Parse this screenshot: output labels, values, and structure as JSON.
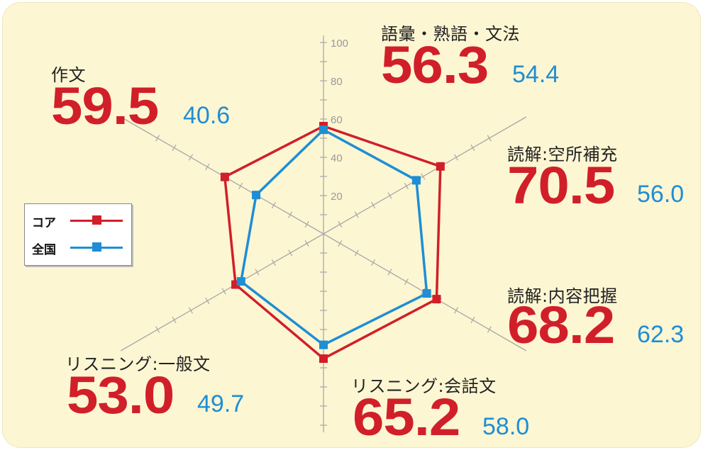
{
  "colors": {
    "core": "#d11f2a",
    "national": "#1f8ed3",
    "axis": "#a8a8a8",
    "background": "#fdf6d3"
  },
  "legend": {
    "items": [
      {
        "label": "コア",
        "color": "#d11f2a"
      },
      {
        "label": "全国",
        "color": "#1f8ed3"
      }
    ]
  },
  "chart_data": {
    "type": "radar",
    "range": [
      0,
      100
    ],
    "ticks": [
      "20",
      "40",
      "60",
      "80",
      "100"
    ],
    "grid": false,
    "legend_position": "left",
    "axes": [
      {
        "label": "語彙・熟語・文法",
        "core": "56.3",
        "national": "54.4"
      },
      {
        "label": "読解:空所補充",
        "core": "70.5",
        "national": "56.0"
      },
      {
        "label": "読解:内容把握",
        "core": "68.2",
        "national": "62.3"
      },
      {
        "label": "リスニング:会話文",
        "core": "65.2",
        "national": "58.0"
      },
      {
        "label": "リスニング:一般文",
        "core": "53.0",
        "national": "49.7"
      },
      {
        "label": "作文",
        "core": "59.5",
        "national": "40.6"
      }
    ],
    "series": [
      {
        "name": "コア",
        "color": "#d11f2a",
        "values": [
          56.3,
          70.5,
          68.2,
          65.2,
          53.0,
          59.5
        ]
      },
      {
        "name": "全国",
        "color": "#1f8ed3",
        "values": [
          54.4,
          56.0,
          62.3,
          58.0,
          49.7,
          40.6
        ]
      }
    ]
  }
}
